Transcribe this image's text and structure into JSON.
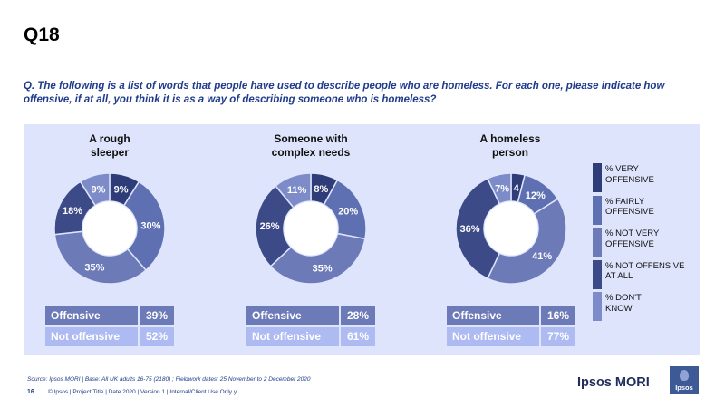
{
  "slide_title": "Q18",
  "question": "Q. The following is a list of words that people have used to describe people who are homeless. For each one, please indicate how offensive, if at all, you think it is as a way of describing someone who is homeless?",
  "colors": {
    "very_offensive": "#2e3d78",
    "fairly_offensive": "#5f70b2",
    "not_very_offensive": "#6c7ab8",
    "not_offensive_at_all": "#3c4a88",
    "dont_know": "#7d8cc9",
    "panel": "#dde4fb"
  },
  "chart_data": [
    {
      "type": "pie",
      "style": "donut",
      "title_line1": "A rough",
      "title_line2": "sleeper",
      "slices": [
        {
          "name": "% VERY OFFENSIVE",
          "value": 9,
          "label": "9%"
        },
        {
          "name": "% FAIRLY OFFENSIVE",
          "value": 30,
          "label": "30%"
        },
        {
          "name": "% NOT VERY OFFENSIVE",
          "value": 35,
          "label": "35%"
        },
        {
          "name": "% NOT OFFENSIVE AT ALL",
          "value": 18,
          "label": "18%"
        },
        {
          "name": "% DON'T KNOW",
          "value": 9,
          "label": "9%"
        }
      ],
      "offensive_label": "Offensive",
      "offensive_value": "39%",
      "not_offensive_label": "Not offensive",
      "not_offensive_value": "52%"
    },
    {
      "type": "pie",
      "style": "donut",
      "title_line1": "Someone with",
      "title_line2": "complex needs",
      "slices": [
        {
          "name": "% VERY OFFENSIVE",
          "value": 8,
          "label": "8%"
        },
        {
          "name": "% FAIRLY OFFENSIVE",
          "value": 20,
          "label": "20%"
        },
        {
          "name": "% NOT VERY OFFENSIVE",
          "value": 35,
          "label": "35%"
        },
        {
          "name": "% NOT OFFENSIVE AT ALL",
          "value": 26,
          "label": "26%"
        },
        {
          "name": "% DON'T KNOW",
          "value": 11,
          "label": "11%"
        }
      ],
      "offensive_label": "Offensive",
      "offensive_value": "28%",
      "not_offensive_label": "Not offensive",
      "not_offensive_value": "61%"
    },
    {
      "type": "pie",
      "style": "donut",
      "title_line1": "A homeless",
      "title_line2": "person",
      "slices": [
        {
          "name": "% VERY OFFENSIVE",
          "value": 4,
          "label": "4"
        },
        {
          "name": "% FAIRLY OFFENSIVE",
          "value": 12,
          "label": "12%"
        },
        {
          "name": "% NOT VERY OFFENSIVE",
          "value": 41,
          "label": "41%"
        },
        {
          "name": "% NOT OFFENSIVE AT ALL",
          "value": 36,
          "label": "36%"
        },
        {
          "name": "% DON'T KNOW",
          "value": 7,
          "label": "7%"
        }
      ],
      "offensive_label": "Offensive",
      "offensive_value": "16%",
      "not_offensive_label": "Not offensive",
      "not_offensive_value": "77%"
    }
  ],
  "legend": [
    {
      "line1": "% VERY",
      "line2": "OFFENSIVE"
    },
    {
      "line1": "% FAIRLY",
      "line2": "OFFENSIVE"
    },
    {
      "line1": "% NOT VERY",
      "line2": "OFFENSIVE"
    },
    {
      "line1": "% NOT OFFENSIVE",
      "line2": "AT ALL"
    },
    {
      "line1": "% DON'T",
      "line2": "KNOW"
    }
  ],
  "source": "Source: Ipsos MORI | Base: All UK adults 16-75 (2180) ; Fieldwork dates: 25 November to 2 December 2020",
  "footer_page": "16",
  "footer_text": "© Ipsos | Project Title | Date 2020 | Version 1 | Internal/Client Use Only y",
  "brand": "Ipsos MORI",
  "logo_text": "Ipsos"
}
